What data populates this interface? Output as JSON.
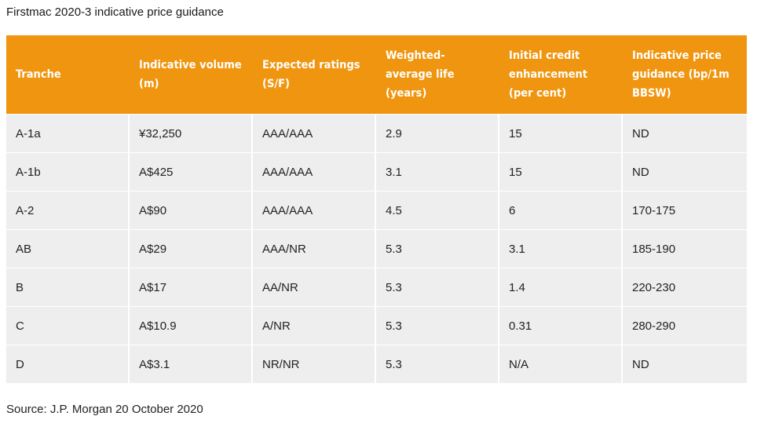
{
  "title": "Firstmac 2020-3 indicative price guidance",
  "table": {
    "headers": [
      "Tranche",
      "Indicative volume (m)",
      "Expected ratings (S/F)",
      "Weighted-average life (years)",
      "Initial credit enhancement (per cent)",
      "Indicative price guidance (bp/1m BBSW)"
    ],
    "rows": [
      [
        "A-1a",
        "¥32,250",
        "AAA/AAA",
        "2.9",
        "15",
        "ND"
      ],
      [
        "A-1b",
        "A$425",
        "AAA/AAA",
        "3.1",
        "15",
        "ND"
      ],
      [
        "A-2",
        "A$90",
        "AAA/AAA",
        "4.5",
        "6",
        "170-175"
      ],
      [
        "AB",
        "A$29",
        "AAA/NR",
        "5.3",
        "3.1",
        "185-190"
      ],
      [
        "B",
        "A$17",
        "AA/NR",
        "5.3",
        "1.4",
        "220-230"
      ],
      [
        "C",
        "A$10.9",
        "A/NR",
        "5.3",
        "0.31",
        "280-290"
      ],
      [
        "D",
        "A$3.1",
        "NR/NR",
        "5.3",
        "N/A",
        "ND"
      ]
    ]
  },
  "source": "Source: J.P. Morgan 20 October 2020",
  "colors": {
    "header_bg": "#f0950f",
    "row_bg": "#eeeeee"
  }
}
